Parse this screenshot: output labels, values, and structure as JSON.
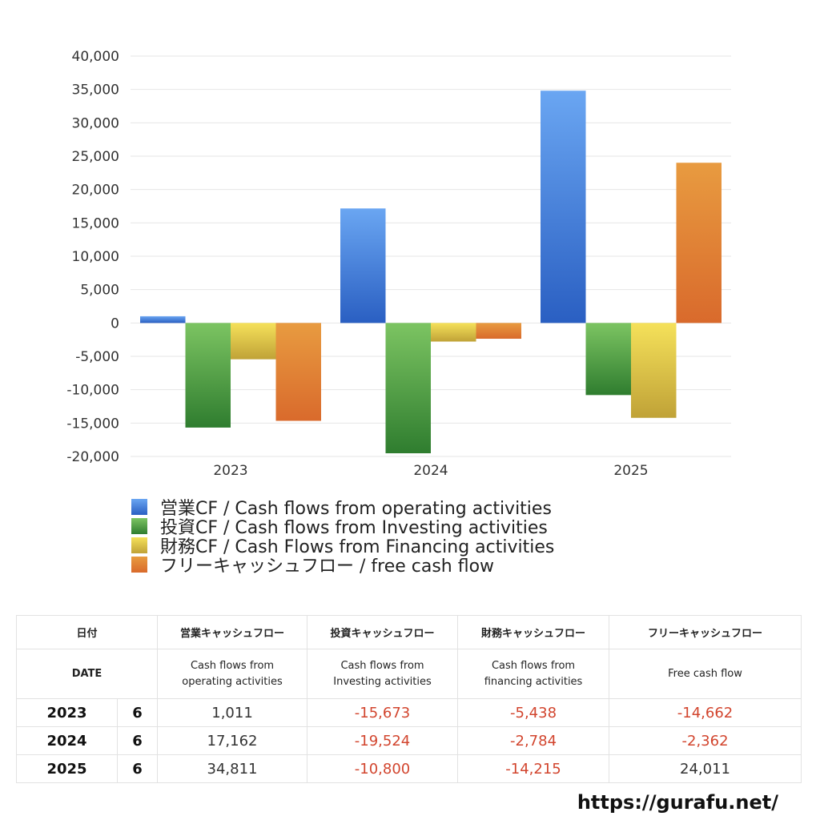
{
  "chart_data": {
    "type": "bar",
    "categories": [
      "2023",
      "2024",
      "2025"
    ],
    "series": [
      {
        "name": "営業CF / Cash flows from operating activities",
        "values": [
          1011,
          17162,
          34811
        ],
        "color": "#3e78d8",
        "grad": [
          "#6aa6f2",
          "#2a5fc2"
        ]
      },
      {
        "name": "投資CF / Cash flows from Investing activities",
        "values": [
          -15673,
          -19524,
          -10800
        ],
        "color": "#4e9a3e",
        "grad": [
          "#7cc462",
          "#2f7d2f"
        ]
      },
      {
        "name": "財務CF / Cash Flows from Financing activities",
        "values": [
          -5438,
          -2784,
          -14215
        ],
        "color": "#e6cf3a",
        "grad": [
          "#f5e15a",
          "#c0a237"
        ]
      },
      {
        "name": "フリーキャッシュフロー / free cash flow",
        "values": [
          -14662,
          -2362,
          24011
        ],
        "color": "#e07a30",
        "grad": [
          "#e89b40",
          "#d96a2c"
        ]
      }
    ],
    "ylim": [
      -20000,
      40000
    ],
    "yticks": [
      40000,
      35000,
      30000,
      25000,
      20000,
      15000,
      10000,
      5000,
      0,
      -5000,
      -10000,
      -15000,
      -20000
    ],
    "ytick_labels": [
      "40,000",
      "35,000",
      "30,000",
      "25,000",
      "20,000",
      "15,000",
      "10,000",
      "5,000",
      "0",
      "-5,000",
      "-10,000",
      "-15,000",
      "-20,000"
    ],
    "grid": true,
    "legend_position": "bottom"
  },
  "table": {
    "header_jp": [
      "日付",
      "営業キャッシュフロー",
      "投資キャッシュフロー",
      "財務キャッシュフロー",
      "フリーキャッシュフロー"
    ],
    "header_en": {
      "date": "DATE",
      "op": [
        "Cash flows from",
        "operating activities"
      ],
      "inv": [
        "Cash flows from",
        "Investing activities"
      ],
      "fin": [
        "Cash flows from",
        "financing activities"
      ],
      "fcf": "Free cash flow"
    },
    "rows": [
      {
        "year": "2023",
        "month": "6",
        "op": "1,011",
        "inv": "-15,673",
        "fin": "-5,438",
        "fcf": "-14,662"
      },
      {
        "year": "2024",
        "month": "6",
        "op": "17,162",
        "inv": "-19,524",
        "fin": "-2,784",
        "fcf": "-2,362"
      },
      {
        "year": "2025",
        "month": "6",
        "op": "34,811",
        "inv": "-10,800",
        "fin": "-14,215",
        "fcf": "24,011"
      }
    ]
  },
  "footer": {
    "url": "https://gurafu.net/"
  }
}
